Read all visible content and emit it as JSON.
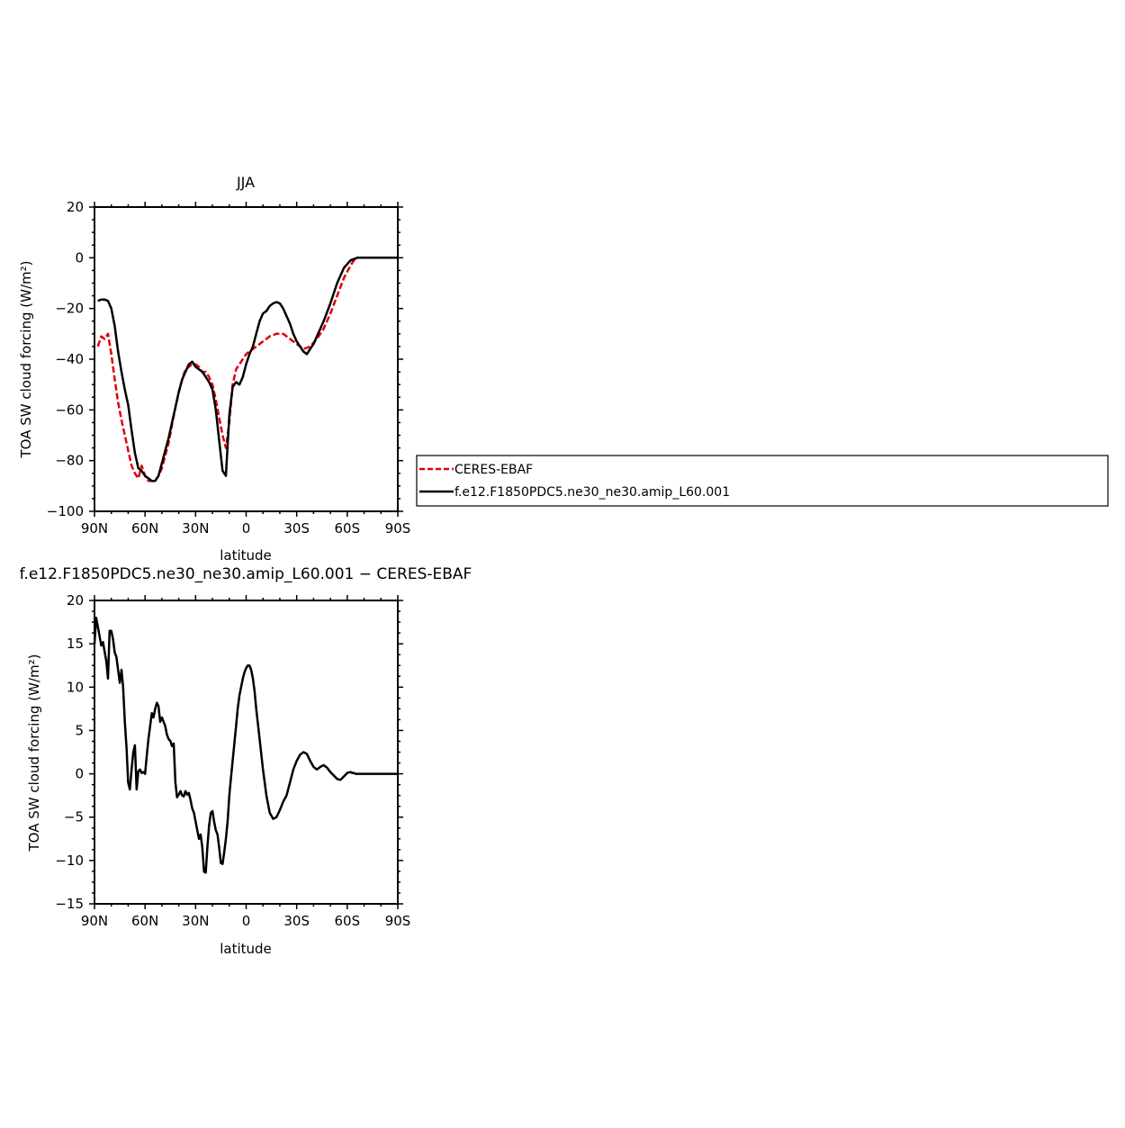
{
  "chart_data": [
    {
      "type": "line",
      "title": "JJA",
      "xlabel": "latitude",
      "ylabel": "TOA SW cloud forcing (W/m²)",
      "xlim": [
        90,
        -90
      ],
      "ylim": [
        -100,
        20
      ],
      "x_ticks": [
        90,
        60,
        30,
        0,
        -30,
        -60,
        -90
      ],
      "x_tick_labels": [
        "90N",
        "60N",
        "30N",
        "0",
        "30S",
        "60S",
        "90S"
      ],
      "y_ticks": [
        20,
        0,
        -20,
        -40,
        -60,
        -80,
        -100
      ],
      "y_tick_labels": [
        "20",
        "0",
        "−20",
        "−40",
        "−60",
        "−80",
        "−100"
      ],
      "legend_position": "right",
      "series": [
        {
          "name": "CERES-EBAF",
          "color": "#e0000c",
          "dash": "dashed",
          "x": [
            88,
            86,
            84,
            82,
            80,
            78,
            76,
            74,
            72,
            70,
            68,
            66,
            64,
            62,
            60,
            58,
            56,
            54,
            52,
            50,
            48,
            46,
            44,
            42,
            40,
            38,
            36,
            34,
            32,
            30,
            28,
            26,
            24,
            22,
            20,
            18,
            16,
            14,
            12,
            10,
            8,
            6,
            4,
            2,
            0,
            -2,
            -4,
            -6,
            -8,
            -10,
            -14,
            -18,
            -22,
            -26,
            -30,
            -34,
            -38,
            -42,
            -46,
            -50,
            -54,
            -58,
            -62,
            -64,
            -66,
            -68,
            -70,
            -74,
            -78,
            -82,
            -86,
            -90
          ],
          "y": [
            -35,
            -31,
            -32,
            -30,
            -38,
            -48,
            -57,
            -64,
            -70,
            -76,
            -82,
            -85,
            -87,
            -82,
            -86,
            -88,
            -88,
            -88,
            -86,
            -83,
            -78,
            -73,
            -66,
            -59,
            -53,
            -48,
            -44,
            -43,
            -42,
            -42,
            -43,
            -45,
            -45,
            -47,
            -50,
            -56,
            -63,
            -70,
            -75,
            -65,
            -50,
            -44,
            -42,
            -40,
            -38,
            -37,
            -36,
            -35,
            -34,
            -33,
            -31,
            -30,
            -30,
            -32,
            -34,
            -36,
            -35,
            -32,
            -28,
            -22,
            -15,
            -8,
            -3,
            -1,
            0,
            0,
            0,
            0,
            0,
            0,
            0,
            0
          ]
        },
        {
          "name": "f.e12.F1850PDC5.ne30_ne30.amip_L60.001",
          "color": "#000000",
          "dash": "solid",
          "x": [
            88,
            86,
            84,
            82,
            80,
            78,
            76,
            74,
            72,
            70,
            68,
            66,
            64,
            62,
            60,
            58,
            56,
            54,
            52,
            50,
            48,
            46,
            44,
            42,
            40,
            38,
            36,
            34,
            32,
            30,
            28,
            26,
            24,
            22,
            20,
            18,
            16,
            14,
            12,
            10,
            8,
            6,
            4,
            2,
            0,
            -2,
            -4,
            -6,
            -8,
            -10,
            -12,
            -14,
            -16,
            -18,
            -20,
            -22,
            -24,
            -26,
            -28,
            -30,
            -32,
            -34,
            -36,
            -38,
            -40,
            -42,
            -44,
            -46,
            -50,
            -54,
            -58,
            -62,
            -66,
            -70,
            -74,
            -78,
            -82,
            -86,
            -90
          ],
          "y": [
            -17,
            -16.5,
            -16.5,
            -17,
            -20,
            -27,
            -37,
            -45,
            -52,
            -58,
            -68,
            -77,
            -83,
            -84,
            -86,
            -87,
            -88,
            -88,
            -86,
            -81,
            -76,
            -71,
            -65,
            -59,
            -53,
            -48,
            -45,
            -42,
            -41,
            -43,
            -44,
            -45,
            -47,
            -49,
            -52,
            -60,
            -72,
            -84,
            -86,
            -62,
            -51,
            -49,
            -50,
            -47,
            -42,
            -38,
            -35,
            -30,
            -25,
            -22,
            -21,
            -19,
            -18,
            -17.5,
            -18,
            -20,
            -23,
            -26,
            -30,
            -33,
            -35,
            -37,
            -38,
            -36,
            -34,
            -31,
            -28,
            -25,
            -18,
            -10,
            -4,
            -1,
            0,
            0,
            0,
            0,
            0,
            0,
            0
          ]
        }
      ]
    },
    {
      "type": "line",
      "title": "f.e12.F1850PDC5.ne30_ne30.amip_L60.001 − CERES-EBAF",
      "xlabel": "latitude",
      "ylabel": "TOA SW cloud forcing (W/m²)",
      "xlim": [
        90,
        -90
      ],
      "ylim": [
        -15,
        20
      ],
      "x_ticks": [
        90,
        60,
        30,
        0,
        -30,
        -60,
        -90
      ],
      "x_tick_labels": [
        "90N",
        "60N",
        "30N",
        "0",
        "30S",
        "60S",
        "90S"
      ],
      "y_ticks": [
        20,
        15,
        10,
        5,
        0,
        -5,
        -10,
        -15
      ],
      "y_tick_labels": [
        "20",
        "15",
        "10",
        "5",
        "0",
        "−5",
        "−10",
        "−15"
      ],
      "series": [
        {
          "name": "",
          "color": "#000000",
          "dash": "solid",
          "x": [
            90,
            89,
            88,
            86,
            85,
            83,
            82,
            81,
            80,
            79,
            78,
            77,
            76,
            75,
            74,
            73,
            72,
            71,
            70,
            69,
            68,
            67,
            66,
            65,
            64,
            63,
            62,
            61,
            60,
            59,
            58,
            57,
            56,
            55,
            54,
            53,
            52,
            51,
            50,
            49,
            48,
            47,
            46,
            45,
            44,
            43,
            42,
            41,
            40,
            39,
            38,
            37,
            36,
            35,
            34,
            33,
            32,
            31,
            30,
            29,
            28,
            27,
            26,
            25,
            24,
            23,
            22,
            21,
            20,
            19,
            18,
            17,
            16,
            15,
            14,
            13,
            12,
            11,
            10,
            9,
            8,
            7,
            6,
            5,
            4,
            3,
            2,
            1,
            0,
            -1,
            -2,
            -3,
            -4,
            -5,
            -6,
            -8,
            -10,
            -12,
            -14,
            -16,
            -18,
            -20,
            -22,
            -24,
            -26,
            -28,
            -30,
            -32,
            -34,
            -36,
            -38,
            -40,
            -42,
            -44,
            -46,
            -48,
            -50,
            -52,
            -54,
            -56,
            -58,
            -60,
            -62,
            -63,
            -64,
            -65,
            -66,
            -67,
            -68,
            -70,
            -72,
            -74,
            -76,
            -78,
            -80,
            -82,
            -84,
            -86,
            -90
          ],
          "y": [
            15,
            18,
            17,
            14.8,
            15.2,
            13,
            11,
            16.5,
            16.5,
            15.5,
            14,
            13.5,
            12,
            10.5,
            12,
            10,
            6,
            3,
            -1,
            -1.8,
            0.5,
            2.5,
            3.3,
            -1.8,
            0.3,
            0.5,
            0.1,
            0.2,
            0,
            2,
            4,
            5.5,
            7,
            6.5,
            7.5,
            8.2,
            7.8,
            6,
            6.5,
            6,
            5.5,
            4.5,
            4,
            3.8,
            3.2,
            3.5,
            -1,
            -2.7,
            -2.4,
            -2,
            -2.5,
            -2.6,
            -2,
            -2.4,
            -2.2,
            -3,
            -4,
            -4.5,
            -5.5,
            -6.5,
            -7.5,
            -7,
            -8.5,
            -11.3,
            -11.4,
            -8.5,
            -6,
            -4.5,
            -4.3,
            -5.5,
            -6.5,
            -7,
            -8.5,
            -10.3,
            -10.4,
            -9,
            -7.5,
            -5.5,
            -2.5,
            -0.5,
            1.5,
            3.5,
            5.5,
            7.5,
            9,
            10,
            11,
            11.7,
            12.2,
            12.5,
            12.5,
            12,
            11,
            9.5,
            7.5,
            4,
            0.5,
            -2.5,
            -4.5,
            -5.2,
            -5,
            -4.2,
            -3.2,
            -2.5,
            -1,
            0.5,
            1.5,
            2.2,
            2.5,
            2.3,
            1.5,
            0.8,
            0.5,
            0.8,
            1,
            0.7,
            0.2,
            -0.2,
            -0.6,
            -0.7,
            -0.3,
            0.1,
            0.2,
            0.1,
            0.1,
            0,
            0,
            0,
            0,
            0,
            0,
            0,
            0,
            0,
            0,
            0,
            0,
            0,
            0
          ]
        }
      ]
    }
  ]
}
